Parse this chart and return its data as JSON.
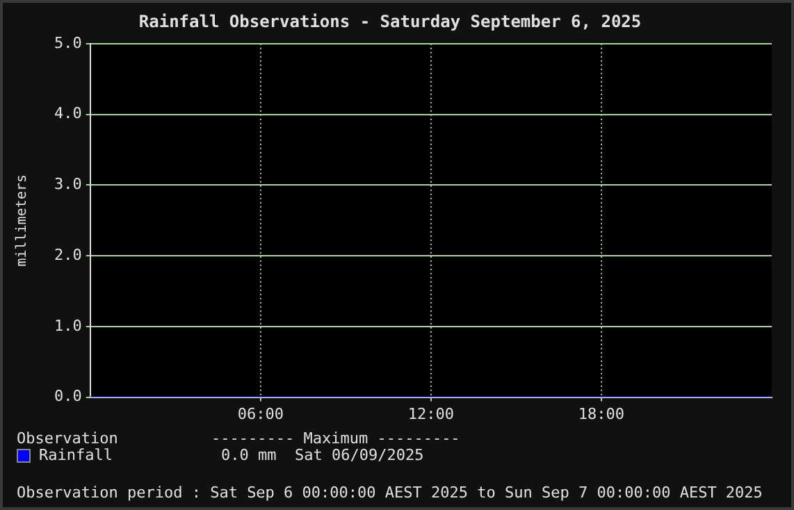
{
  "chart_data": {
    "type": "line",
    "title": "Rainfall Observations - Saturday September 6, 2025",
    "ylabel": "millimeters",
    "x": [
      0,
      24
    ],
    "xlim": [
      0,
      24
    ],
    "xticks": [
      {
        "value": 6,
        "label": "06:00"
      },
      {
        "value": 12,
        "label": "12:00"
      },
      {
        "value": 18,
        "label": "18:00"
      }
    ],
    "ylim": [
      0,
      5
    ],
    "yticks": [
      {
        "value": 0,
        "label": "0.0"
      },
      {
        "value": 1,
        "label": "1.0"
      },
      {
        "value": 2,
        "label": "2.0"
      },
      {
        "value": 3,
        "label": "3.0"
      },
      {
        "value": 4,
        "label": "4.0"
      },
      {
        "value": 5,
        "label": "5.0"
      }
    ],
    "series": [
      {
        "name": "Rainfall",
        "color": "#0000ff",
        "values": [
          0,
          0
        ]
      }
    ],
    "grid": true,
    "legend": "bottom",
    "marker": "none",
    "annotations": [
      "Observation",
      "--------- Maximum ---------",
      "0.0 mm  Sat 06/09/2025",
      "Observation period : Sat Sep 6 00:00:00 AEST 2025 to Sun Sep 7 00:00:00 AEST 2025"
    ]
  }
}
